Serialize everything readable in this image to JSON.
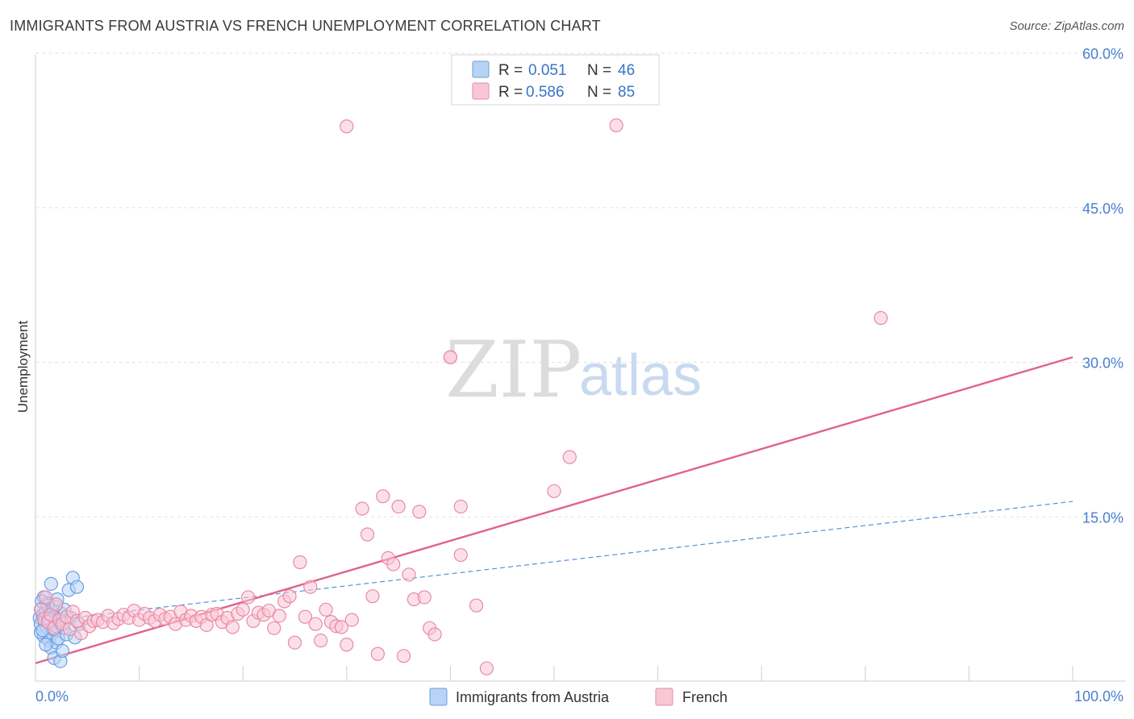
{
  "header": {
    "title": "IMMIGRANTS FROM AUSTRIA VS FRENCH UNEMPLOYMENT CORRELATION CHART",
    "source": "Source: ZipAtlas.com"
  },
  "watermark": {
    "zip": "ZIP",
    "atlas": "atlas"
  },
  "legend": {
    "r_label": "R =",
    "n_label": "N =",
    "rows": [
      {
        "r": "0.051",
        "n": "46",
        "fill": "#b8d3f5",
        "stroke": "#6a9ee0"
      },
      {
        "r": "0.586",
        "n": "85",
        "fill": "#f9c6d6",
        "stroke": "#e88aa8"
      }
    ]
  },
  "bottom_legend": [
    {
      "label": "Immigrants from Austria",
      "fill": "#b8d3f5",
      "stroke": "#6a9ee0"
    },
    {
      "label": "French",
      "fill": "#f9c6d6",
      "stroke": "#e88aa8"
    }
  ],
  "chart_data": {
    "type": "scatter",
    "title": "IMMIGRANTS FROM AUSTRIA VS FRENCH UNEMPLOYMENT CORRELATION CHART",
    "xlabel": "",
    "ylabel": "Unemployment",
    "xlim": [
      0,
      100
    ],
    "ylim": [
      0,
      60
    ],
    "x_tick_labels": [
      "0.0%",
      "100.0%"
    ],
    "y_ticks": [
      15,
      30,
      45,
      60
    ],
    "y_tick_labels": [
      "15.0%",
      "30.0%",
      "45.0%",
      "60.0%"
    ],
    "grid": true,
    "series": [
      {
        "name": "Immigrants from Austria",
        "color": "#6a9ee0",
        "fill": "#b8d3f5",
        "trend": {
          "x": [
            0,
            100
          ],
          "y": [
            4.8,
            16.5
          ],
          "style": "dashed"
        },
        "points": [
          [
            0.4,
            5.2
          ],
          [
            0.5,
            4.6
          ],
          [
            0.6,
            6.1
          ],
          [
            0.7,
            5.5
          ],
          [
            0.8,
            3.4
          ],
          [
            0.8,
            7.2
          ],
          [
            0.9,
            4.9
          ],
          [
            1.0,
            5.8
          ],
          [
            1.1,
            4.3
          ],
          [
            1.1,
            6.6
          ],
          [
            1.2,
            5.1
          ],
          [
            1.3,
            3.0
          ],
          [
            1.3,
            5.4
          ],
          [
            1.4,
            4.7
          ],
          [
            1.5,
            8.5
          ],
          [
            1.5,
            2.3
          ],
          [
            1.6,
            5.9
          ],
          [
            1.6,
            3.7
          ],
          [
            1.7,
            4.1
          ],
          [
            1.8,
            5.3
          ],
          [
            1.8,
            1.3
          ],
          [
            1.9,
            6.3
          ],
          [
            2.0,
            4.4
          ],
          [
            2.0,
            2.8
          ],
          [
            2.1,
            7.0
          ],
          [
            2.2,
            5.0
          ],
          [
            2.2,
            3.2
          ],
          [
            2.3,
            4.8
          ],
          [
            2.4,
            1.0
          ],
          [
            2.5,
            5.6
          ],
          [
            2.6,
            2.0
          ],
          [
            2.7,
            4.2
          ],
          [
            2.8,
            6.0
          ],
          [
            3.0,
            3.6
          ],
          [
            3.2,
            7.9
          ],
          [
            3.4,
            5.2
          ],
          [
            3.6,
            9.1
          ],
          [
            3.8,
            3.3
          ],
          [
            4.0,
            8.2
          ],
          [
            4.2,
            4.6
          ],
          [
            0.5,
            3.8
          ],
          [
            0.6,
            6.8
          ],
          [
            0.7,
            4.0
          ],
          [
            1.0,
            2.6
          ],
          [
            1.2,
            6.4
          ],
          [
            1.4,
            5.0
          ]
        ]
      },
      {
        "name": "French",
        "color": "#e88aa8",
        "fill": "#f9c6d6",
        "trend": {
          "x": [
            0,
            100
          ],
          "y": [
            0.8,
            30.5
          ],
          "style": "solid"
        },
        "points": [
          [
            0.5,
            6.0
          ],
          [
            0.8,
            5.1
          ],
          [
            1.0,
            7.2
          ],
          [
            1.2,
            4.8
          ],
          [
            1.5,
            5.5
          ],
          [
            1.8,
            4.2
          ],
          [
            2.0,
            6.5
          ],
          [
            2.3,
            5.0
          ],
          [
            2.6,
            4.6
          ],
          [
            3.0,
            5.3
          ],
          [
            3.3,
            4.1
          ],
          [
            3.6,
            5.8
          ],
          [
            4.0,
            4.9
          ],
          [
            4.4,
            3.7
          ],
          [
            4.8,
            5.2
          ],
          [
            5.2,
            4.4
          ],
          [
            5.6,
            4.9
          ],
          [
            6.0,
            5.0
          ],
          [
            6.5,
            4.8
          ],
          [
            7.0,
            5.4
          ],
          [
            7.5,
            4.7
          ],
          [
            8.0,
            5.1
          ],
          [
            8.5,
            5.5
          ],
          [
            9.0,
            5.2
          ],
          [
            9.5,
            5.9
          ],
          [
            10.0,
            5.0
          ],
          [
            10.5,
            5.6
          ],
          [
            11.0,
            5.2
          ],
          [
            11.5,
            4.9
          ],
          [
            12.0,
            5.5
          ],
          [
            12.5,
            5.1
          ],
          [
            13.0,
            5.3
          ],
          [
            13.5,
            4.6
          ],
          [
            14.0,
            5.8
          ],
          [
            14.5,
            5.0
          ],
          [
            15.0,
            5.4
          ],
          [
            15.5,
            4.9
          ],
          [
            16.0,
            5.3
          ],
          [
            16.5,
            4.5
          ],
          [
            17.0,
            5.5
          ],
          [
            17.5,
            5.6
          ],
          [
            18.0,
            4.8
          ],
          [
            18.5,
            5.2
          ],
          [
            19.0,
            4.3
          ],
          [
            19.5,
            5.6
          ],
          [
            20.0,
            6.0
          ],
          [
            20.5,
            7.2
          ],
          [
            21.0,
            4.9
          ],
          [
            21.5,
            5.7
          ],
          [
            22.0,
            5.5
          ],
          [
            22.5,
            5.9
          ],
          [
            23.0,
            4.2
          ],
          [
            23.5,
            5.4
          ],
          [
            24.0,
            6.8
          ],
          [
            24.5,
            7.3
          ],
          [
            25.0,
            2.8
          ],
          [
            25.5,
            10.6
          ],
          [
            26.0,
            5.3
          ],
          [
            26.5,
            8.2
          ],
          [
            27.0,
            4.6
          ],
          [
            27.5,
            3.0
          ],
          [
            28.0,
            6.0
          ],
          [
            28.5,
            4.8
          ],
          [
            29.0,
            4.4
          ],
          [
            29.5,
            4.3
          ],
          [
            30.0,
            2.6
          ],
          [
            30.5,
            5.0
          ],
          [
            31.5,
            15.8
          ],
          [
            32.0,
            13.3
          ],
          [
            32.5,
            7.3
          ],
          [
            33.0,
            1.7
          ],
          [
            33.5,
            17.0
          ],
          [
            34.0,
            11.0
          ],
          [
            34.5,
            10.4
          ],
          [
            35.0,
            16.0
          ],
          [
            35.5,
            1.5
          ],
          [
            36.0,
            9.4
          ],
          [
            36.5,
            7.0
          ],
          [
            37.0,
            15.5
          ],
          [
            37.5,
            7.2
          ],
          [
            38.0,
            4.2
          ],
          [
            38.5,
            3.6
          ],
          [
            30.0,
            52.9
          ],
          [
            40.0,
            30.5
          ],
          [
            50.0,
            17.5
          ]
        ]
      }
    ],
    "notable_outliers": [
      [
        56.0,
        53.0
      ],
      [
        81.5,
        34.3
      ],
      [
        40.0,
        30.5
      ],
      [
        51.5,
        20.8
      ],
      [
        41.0,
        11.3
      ],
      [
        42.5,
        6.4
      ],
      [
        43.5,
        0.3
      ],
      [
        41.0,
        16.0
      ]
    ]
  }
}
